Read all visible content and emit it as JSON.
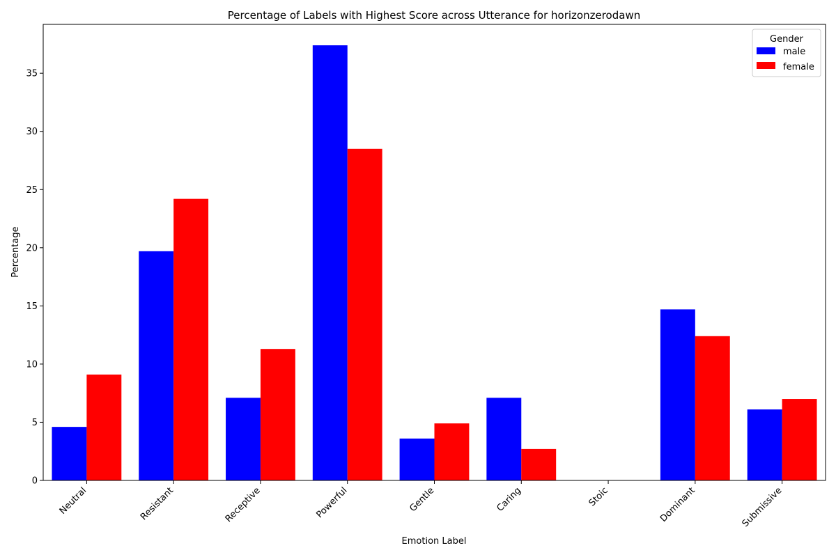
{
  "chart_data": {
    "type": "bar",
    "title": "Percentage of Labels with Highest Score across Utterance for horizonzerodawn",
    "xlabel": "Emotion Label",
    "ylabel": "Percentage",
    "categories": [
      "Neutral",
      "Resistant",
      "Receptive",
      "Powerful",
      "Gentle",
      "Caring",
      "Stoic",
      "Dominant",
      "Submissive"
    ],
    "series": [
      {
        "name": "male",
        "color": "#0000ff",
        "values": [
          4.6,
          19.7,
          7.1,
          37.4,
          3.6,
          7.1,
          0.0,
          14.7,
          6.1
        ]
      },
      {
        "name": "female",
        "color": "#ff0000",
        "values": [
          9.1,
          24.2,
          11.3,
          28.5,
          4.9,
          2.7,
          0.0,
          12.4,
          7.0
        ]
      }
    ],
    "ylim": [
      0,
      39.2
    ],
    "yticks": [
      0,
      5,
      10,
      15,
      20,
      25,
      30,
      35
    ],
    "grid": false,
    "legend": {
      "title": "Gender",
      "placement": "top-right"
    }
  }
}
